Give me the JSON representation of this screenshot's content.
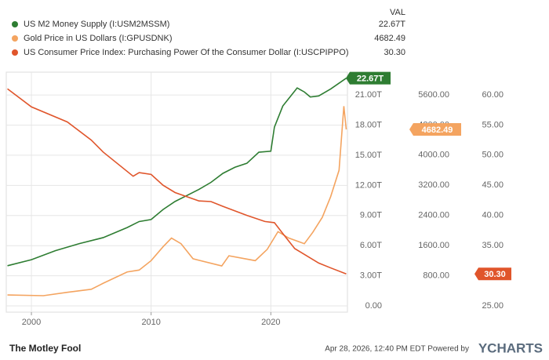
{
  "chart_data": {
    "type": "line",
    "legend_header": "VAL",
    "xlim": [
      1997.9,
      2026.4
    ],
    "xticks": [
      2000,
      2010,
      2020
    ],
    "ylim": [
      -0.62,
      23.27
    ],
    "yticks": [
      {
        "value": 0,
        "label": "0.00"
      },
      {
        "value": 3,
        "label": "3.00T"
      },
      {
        "value": 6,
        "label": "6.00T"
      },
      {
        "value": 9,
        "label": "9.00T"
      },
      {
        "value": 12,
        "label": "12.00T"
      },
      {
        "value": 15,
        "label": "15.00T"
      },
      {
        "value": 18,
        "label": "18.00T"
      },
      {
        "value": 21,
        "label": "21.00T"
      }
    ],
    "y2lim": [
      -167,
      6203
    ],
    "y2ticks": [
      {
        "value": 800,
        "label": "800.00"
      },
      {
        "value": 1600,
        "label": "1600.00"
      },
      {
        "value": 2400,
        "label": "2400.00"
      },
      {
        "value": 3200,
        "label": "3200.00"
      },
      {
        "value": 4000,
        "label": "4000.00"
      },
      {
        "value": 4800,
        "label": "4800.00"
      },
      {
        "value": 5600,
        "label": "5600.00"
      }
    ],
    "y3lim": [
      23.96,
      63.76
    ],
    "y3ticks": [
      {
        "value": 25,
        "label": "25.00"
      },
      {
        "value": 30,
        "label": "30.00"
      },
      {
        "value": 35,
        "label": "35.00"
      },
      {
        "value": 40,
        "label": "40.00"
      },
      {
        "value": 45,
        "label": "45.00"
      },
      {
        "value": 50,
        "label": "50.00"
      },
      {
        "value": 55,
        "label": "55.00"
      },
      {
        "value": 60,
        "label": "60.00"
      }
    ],
    "grid": true,
    "series": [
      {
        "name": "US M2 Money Supply (I:USM2MSSM)",
        "color": "#2e7d32",
        "axis": "y",
        "latest_label": "22.67T",
        "x": [
          1998,
          2000,
          2002,
          2004,
          2006,
          2008,
          2009,
          2010,
          2011,
          2012,
          2013,
          2014,
          2015,
          2016,
          2017,
          2018,
          2019,
          2020,
          2020.3,
          2021,
          2022.2,
          2022.8,
          2023.3,
          2024,
          2025,
          2026.3
        ],
        "values": [
          4.0,
          4.6,
          5.5,
          6.2,
          6.8,
          7.8,
          8.4,
          8.6,
          9.6,
          10.4,
          11.0,
          11.6,
          12.3,
          13.2,
          13.8,
          14.2,
          15.3,
          15.4,
          17.8,
          19.9,
          21.7,
          21.3,
          20.8,
          20.9,
          21.6,
          22.67
        ]
      },
      {
        "name": "Gold Price in US Dollars (I:GPUSDNK)",
        "color": "#f4a460",
        "axis": "y2",
        "latest_label": "4682.49",
        "x": [
          1998,
          2001,
          2003,
          2005,
          2006,
          2008,
          2009,
          2010,
          2011,
          2011.7,
          2012.5,
          2013.5,
          2015.9,
          2016.5,
          2018.7,
          2019.7,
          2020.6,
          2021.5,
          2022.8,
          2023.5,
          2024.3,
          2025,
          2025.7,
          2026.1,
          2026.3
        ],
        "values": [
          290,
          270,
          360,
          440,
          600,
          900,
          950,
          1200,
          1570,
          1800,
          1650,
          1250,
          1060,
          1330,
          1200,
          1500,
          1970,
          1800,
          1650,
          1950,
          2350,
          2900,
          3600,
          5300,
          4682.49
        ]
      },
      {
        "name": "US Consumer Price Index: Purchasing Power Of the Consumer Dollar (I:USCPIPPO)",
        "color": "#e0552b",
        "axis": "y3",
        "latest_label": "30.30",
        "x": [
          1998,
          2000,
          2003,
          2005,
          2006,
          2008.5,
          2009,
          2010,
          2011,
          2012,
          2014,
          2015,
          2016,
          2018,
          2019.5,
          2020.3,
          2021,
          2022,
          2023,
          2024,
          2025,
          2026.3
        ],
        "values": [
          61.0,
          58.0,
          55.5,
          52.5,
          50.5,
          46.5,
          47.1,
          46.8,
          45.0,
          43.8,
          42.4,
          42.3,
          41.5,
          40.0,
          39.0,
          38.8,
          37.0,
          34.5,
          33.3,
          32.1,
          31.3,
          30.3
        ]
      }
    ]
  },
  "footer": {
    "brand": "The Motley Fool",
    "timestamp": "Apr 28, 2026, 12:40 PM EDT Powered by",
    "provider": "YCHARTS"
  }
}
